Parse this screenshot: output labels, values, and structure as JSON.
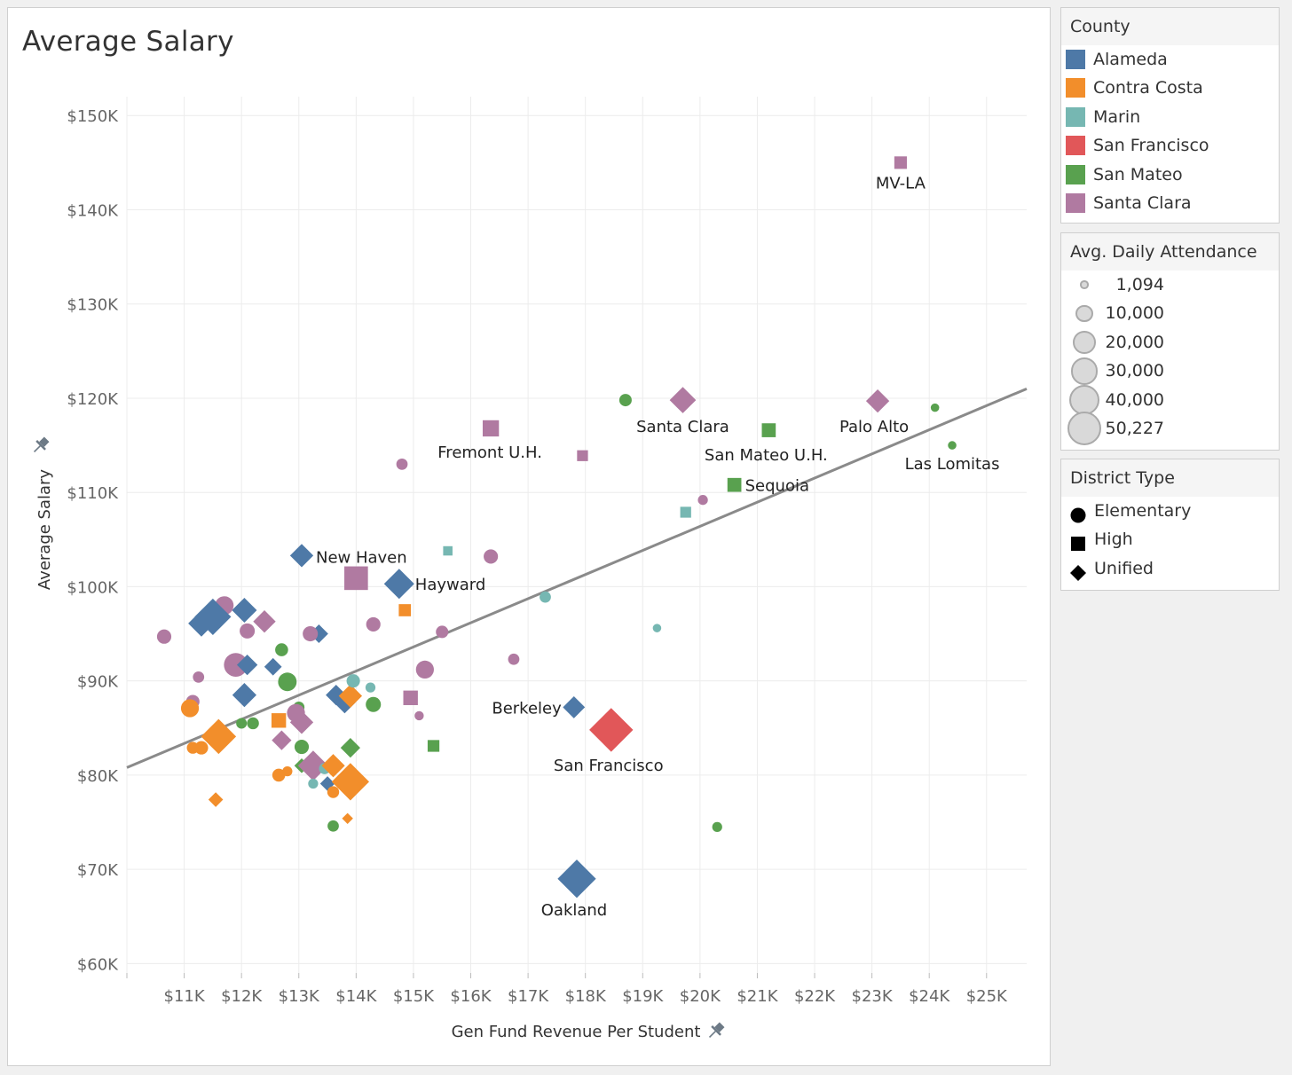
{
  "chart_data": {
    "type": "scatter",
    "title": "Average Salary",
    "xlabel": "Gen Fund Revenue Per Student",
    "ylabel": "Average Salary",
    "xlim": [
      10000,
      25700
    ],
    "ylim": [
      59000,
      152000
    ],
    "x_ticks": [
      11000,
      12000,
      13000,
      14000,
      15000,
      16000,
      17000,
      18000,
      19000,
      20000,
      21000,
      22000,
      23000,
      24000,
      25000
    ],
    "x_tick_labels": [
      "$11K",
      "$12K",
      "$13K",
      "$14K",
      "$15K",
      "$16K",
      "$17K",
      "$18K",
      "$19K",
      "$20K",
      "$21K",
      "$22K",
      "$23K",
      "$24K",
      "$25K"
    ],
    "y_ticks": [
      60000,
      70000,
      80000,
      90000,
      100000,
      110000,
      120000,
      130000,
      140000,
      150000
    ],
    "y_tick_labels": [
      "$60K",
      "$70K",
      "$80K",
      "$90K",
      "$100K",
      "$110K",
      "$120K",
      "$130K",
      "$140K",
      "$150K"
    ],
    "grid": true,
    "trend_line": {
      "x": [
        10000,
        25700
      ],
      "y": [
        80800,
        121000
      ]
    },
    "counties": [
      {
        "name": "Alameda",
        "color": "#4e79a7"
      },
      {
        "name": "Contra Costa",
        "color": "#f28e2b"
      },
      {
        "name": "Marin",
        "color": "#76b7b2"
      },
      {
        "name": "San Francisco",
        "color": "#e15759"
      },
      {
        "name": "San Mateo",
        "color": "#59a14f"
      },
      {
        "name": "Santa Clara",
        "color": "#b07aa1"
      }
    ],
    "size_legend": [
      "1,094",
      "10,000",
      "20,000",
      "30,000",
      "40,000",
      "50,227"
    ],
    "district_types": [
      "Elementary",
      "High",
      "Unified"
    ],
    "labeled_points": [
      {
        "label": "MV-LA",
        "x": 23500,
        "y": 145000,
        "county": "Santa Clara",
        "type": "High",
        "size": 6000
      },
      {
        "label": "Santa Clara",
        "x": 19700,
        "y": 119800,
        "county": "Santa Clara",
        "type": "Unified",
        "size": 15000
      },
      {
        "label": "Palo Alto",
        "x": 23100,
        "y": 119700,
        "county": "Santa Clara",
        "type": "Unified",
        "size": 11000
      },
      {
        "label": "Fremont U.H.",
        "x": 16350,
        "y": 116800,
        "county": "Santa Clara",
        "type": "High",
        "size": 12000
      },
      {
        "label": "San Mateo U.H.",
        "x": 21200,
        "y": 116600,
        "county": "San Mateo",
        "type": "High",
        "size": 8000
      },
      {
        "label": "Las Lomitas",
        "x": 24400,
        "y": 115000,
        "county": "San Mateo",
        "type": "Elementary",
        "size": 1094
      },
      {
        "label": "Sequoia",
        "x": 20600,
        "y": 110800,
        "county": "San Mateo",
        "type": "High",
        "size": 8000
      },
      {
        "label": "New Haven",
        "x": 13050,
        "y": 103300,
        "county": "Alameda",
        "type": "Unified",
        "size": 11000
      },
      {
        "label": "Hayward",
        "x": 14750,
        "y": 100300,
        "county": "Alameda",
        "type": "Unified",
        "size": 21000
      },
      {
        "label": "Berkeley",
        "x": 17800,
        "y": 87200,
        "county": "Alameda",
        "type": "Unified",
        "size": 9500
      },
      {
        "label": "San Francisco",
        "x": 18450,
        "y": 84800,
        "county": "San Francisco",
        "type": "Unified",
        "size": 50227
      },
      {
        "label": "Oakland",
        "x": 17850,
        "y": 69000,
        "county": "Alameda",
        "type": "Unified",
        "size": 37000
      }
    ],
    "points": [
      {
        "x": 24100,
        "y": 119000,
        "county": "San Mateo",
        "type": "Elementary",
        "size": 1094
      },
      {
        "x": 18700,
        "y": 119800,
        "county": "San Mateo",
        "type": "Elementary",
        "size": 4000
      },
      {
        "x": 17950,
        "y": 113900,
        "county": "Santa Clara",
        "type": "High",
        "size": 4000
      },
      {
        "x": 14800,
        "y": 113000,
        "county": "Santa Clara",
        "type": "Elementary",
        "size": 3000
      },
      {
        "x": 19750,
        "y": 107900,
        "county": "Marin",
        "type": "High",
        "size": 4000
      },
      {
        "x": 20050,
        "y": 109200,
        "county": "Santa Clara",
        "type": "Elementary",
        "size": 2000
      },
      {
        "x": 15600,
        "y": 103800,
        "county": "Marin",
        "type": "High",
        "size": 2500
      },
      {
        "x": 16350,
        "y": 103200,
        "county": "Santa Clara",
        "type": "Elementary",
        "size": 6000
      },
      {
        "x": 14000,
        "y": 100900,
        "county": "Santa Clara",
        "type": "High",
        "size": 30000
      },
      {
        "x": 14850,
        "y": 97500,
        "county": "Contra Costa",
        "type": "High",
        "size": 5500
      },
      {
        "x": 17300,
        "y": 98900,
        "county": "Marin",
        "type": "Elementary",
        "size": 3000
      },
      {
        "x": 19250,
        "y": 95600,
        "county": "Marin",
        "type": "Elementary",
        "size": 1094
      },
      {
        "x": 15500,
        "y": 95200,
        "county": "Santa Clara",
        "type": "Elementary",
        "size": 4000
      },
      {
        "x": 16750,
        "y": 92300,
        "county": "Santa Clara",
        "type": "Elementary",
        "size": 3000
      },
      {
        "x": 15200,
        "y": 91200,
        "county": "Santa Clara",
        "type": "Elementary",
        "size": 11000
      },
      {
        "x": 14300,
        "y": 96000,
        "county": "Santa Clara",
        "type": "Elementary",
        "size": 6000
      },
      {
        "x": 13350,
        "y": 95000,
        "county": "Alameda",
        "type": "Unified",
        "size": 6000
      },
      {
        "x": 13200,
        "y": 95000,
        "county": "Santa Clara",
        "type": "Elementary",
        "size": 7000
      },
      {
        "x": 12400,
        "y": 96300,
        "county": "Santa Clara",
        "type": "Unified",
        "size": 10000
      },
      {
        "x": 12050,
        "y": 97500,
        "county": "Alameda",
        "type": "Unified",
        "size": 13000
      },
      {
        "x": 11700,
        "y": 98000,
        "county": "Santa Clara",
        "type": "Elementary",
        "size": 12000
      },
      {
        "x": 11500,
        "y": 96800,
        "county": "Alameda",
        "type": "Unified",
        "size": 33000
      },
      {
        "x": 11300,
        "y": 96100,
        "county": "Alameda",
        "type": "Unified",
        "size": 15000
      },
      {
        "x": 10650,
        "y": 94700,
        "county": "Santa Clara",
        "type": "Elementary",
        "size": 6000
      },
      {
        "x": 12100,
        "y": 95300,
        "county": "Santa Clara",
        "type": "Elementary",
        "size": 7000
      },
      {
        "x": 11900,
        "y": 91700,
        "county": "Santa Clara",
        "type": "Elementary",
        "size": 22000
      },
      {
        "x": 12100,
        "y": 91700,
        "county": "Alameda",
        "type": "Unified",
        "size": 8000
      },
      {
        "x": 12550,
        "y": 91500,
        "county": "Alameda",
        "type": "Unified",
        "size": 5000
      },
      {
        "x": 12700,
        "y": 93300,
        "county": "San Mateo",
        "type": "Elementary",
        "size": 4500
      },
      {
        "x": 11250,
        "y": 90400,
        "county": "Santa Clara",
        "type": "Elementary",
        "size": 3000
      },
      {
        "x": 12800,
        "y": 89900,
        "county": "San Mateo",
        "type": "Elementary",
        "size": 12000
      },
      {
        "x": 12050,
        "y": 88500,
        "county": "Alameda",
        "type": "Unified",
        "size": 12000
      },
      {
        "x": 13650,
        "y": 88500,
        "county": "Alameda",
        "type": "Unified",
        "size": 8000
      },
      {
        "x": 13800,
        "y": 87700,
        "county": "Alameda",
        "type": "Unified",
        "size": 9000
      },
      {
        "x": 13900,
        "y": 88400,
        "county": "Contra Costa",
        "type": "Unified",
        "size": 11000
      },
      {
        "x": 13950,
        "y": 90000,
        "county": "Marin",
        "type": "Elementary",
        "size": 5000
      },
      {
        "x": 14250,
        "y": 89300,
        "county": "Marin",
        "type": "Elementary",
        "size": 2000
      },
      {
        "x": 14300,
        "y": 87500,
        "county": "San Mateo",
        "type": "Elementary",
        "size": 7000
      },
      {
        "x": 14950,
        "y": 88200,
        "county": "Santa Clara",
        "type": "High",
        "size": 9000
      },
      {
        "x": 15100,
        "y": 86300,
        "county": "Santa Clara",
        "type": "Elementary",
        "size": 1500
      },
      {
        "x": 11150,
        "y": 87800,
        "county": "Santa Clara",
        "type": "Elementary",
        "size": 5000
      },
      {
        "x": 11100,
        "y": 87100,
        "county": "Contra Costa",
        "type": "Elementary",
        "size": 11000
      },
      {
        "x": 11600,
        "y": 84100,
        "county": "Contra Costa",
        "type": "Unified",
        "size": 30000
      },
      {
        "x": 11150,
        "y": 82900,
        "county": "Contra Costa",
        "type": "Elementary",
        "size": 3500
      },
      {
        "x": 11300,
        "y": 82900,
        "county": "Contra Costa",
        "type": "Elementary",
        "size": 5000
      },
      {
        "x": 12000,
        "y": 85500,
        "county": "San Mateo",
        "type": "Elementary",
        "size": 2500
      },
      {
        "x": 12200,
        "y": 85500,
        "county": "San Mateo",
        "type": "Elementary",
        "size": 3500
      },
      {
        "x": 12650,
        "y": 85800,
        "county": "Contra Costa",
        "type": "High",
        "size": 9000
      },
      {
        "x": 12700,
        "y": 83700,
        "county": "Santa Clara",
        "type": "Unified",
        "size": 7000
      },
      {
        "x": 13000,
        "y": 87200,
        "county": "San Mateo",
        "type": "Elementary",
        "size": 3000
      },
      {
        "x": 12950,
        "y": 86600,
        "county": "Santa Clara",
        "type": "Elementary",
        "size": 11000
      },
      {
        "x": 13050,
        "y": 85600,
        "county": "Santa Clara",
        "type": "Unified",
        "size": 11000
      },
      {
        "x": 13050,
        "y": 83000,
        "county": "San Mateo",
        "type": "Elementary",
        "size": 6000
      },
      {
        "x": 13900,
        "y": 82900,
        "county": "San Mateo",
        "type": "Unified",
        "size": 7000
      },
      {
        "x": 15350,
        "y": 83100,
        "county": "San Mateo",
        "type": "High",
        "size": 5000
      },
      {
        "x": 13050,
        "y": 81000,
        "county": "San Mateo",
        "type": "Unified",
        "size": 3000
      },
      {
        "x": 13250,
        "y": 81000,
        "county": "Santa Clara",
        "type": "Unified",
        "size": 21000
      },
      {
        "x": 13450,
        "y": 80700,
        "county": "Marin",
        "type": "Elementary",
        "size": 3000
      },
      {
        "x": 13600,
        "y": 81000,
        "county": "Contra Costa",
        "type": "Unified",
        "size": 11000
      },
      {
        "x": 12650,
        "y": 80000,
        "county": "Contra Costa",
        "type": "Elementary",
        "size": 4500
      },
      {
        "x": 12800,
        "y": 80400,
        "county": "Contra Costa",
        "type": "Elementary",
        "size": 2000
      },
      {
        "x": 13250,
        "y": 79100,
        "county": "Marin",
        "type": "Elementary",
        "size": 2000
      },
      {
        "x": 13500,
        "y": 79100,
        "county": "Alameda",
        "type": "Unified",
        "size": 3000
      },
      {
        "x": 13600,
        "y": 78200,
        "county": "Contra Costa",
        "type": "Elementary",
        "size": 3500
      },
      {
        "x": 13900,
        "y": 79300,
        "county": "Contra Costa",
        "type": "Unified",
        "size": 35000
      },
      {
        "x": 11550,
        "y": 77400,
        "county": "Contra Costa",
        "type": "Unified",
        "size": 3000
      },
      {
        "x": 13600,
        "y": 74600,
        "county": "San Mateo",
        "type": "Elementary",
        "size": 3000
      },
      {
        "x": 13850,
        "y": 75400,
        "county": "Contra Costa",
        "type": "Unified",
        "size": 1094
      },
      {
        "x": 20300,
        "y": 74500,
        "county": "San Mateo",
        "type": "Elementary",
        "size": 2000
      }
    ]
  }
}
